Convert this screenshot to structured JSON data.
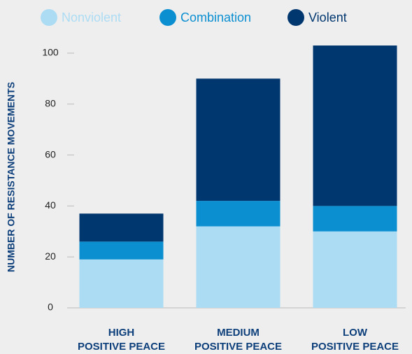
{
  "chart_data": {
    "type": "stacked_bar",
    "categories": [
      [
        "HIGH",
        "POSITIVE PEACE"
      ],
      [
        "MEDIUM",
        "POSITIVE PEACE"
      ],
      [
        "LOW",
        "POSITIVE PEACE"
      ]
    ],
    "series": [
      {
        "name": "Nonviolent",
        "color": "#acdcf3",
        "values": [
          19,
          32,
          30
        ]
      },
      {
        "name": "Combination",
        "color": "#0b8fd1",
        "values": [
          7,
          10,
          10
        ]
      },
      {
        "name": "Violent",
        "color": "#01376f",
        "values": [
          11,
          48,
          63
        ]
      }
    ],
    "y_label": "NUMBER OF RESISTANCE MOVEMENTS",
    "ylim": [
      0,
      104
    ],
    "yticks": [
      0,
      20,
      40,
      60,
      80,
      100
    ]
  }
}
